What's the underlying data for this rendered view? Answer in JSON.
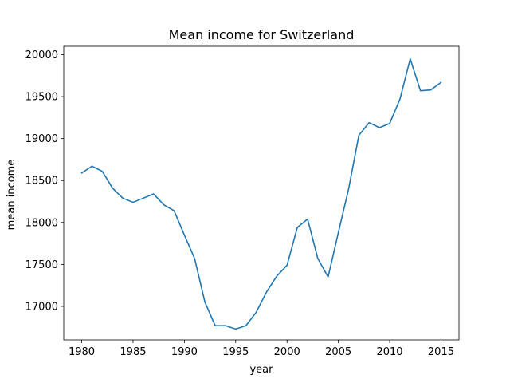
{
  "chart_data": {
    "type": "line",
    "title": "Mean income for Switzerland",
    "xlabel": "year",
    "ylabel": "mean income",
    "xlim": [
      1978.25,
      2016.75
    ],
    "ylim": [
      16600,
      20100
    ],
    "xticks": [
      1980,
      1985,
      1990,
      1995,
      2000,
      2005,
      2010,
      2015
    ],
    "yticks": [
      17000,
      17500,
      18000,
      18500,
      19000,
      19500,
      20000
    ],
    "grid": false,
    "series": [
      {
        "color": "#1f77b4",
        "x": [
          1980,
          1981,
          1982,
          1983,
          1984,
          1985,
          1986,
          1987,
          1988,
          1989,
          1990,
          1991,
          1992,
          1993,
          1994,
          1995,
          1996,
          1997,
          1998,
          1999,
          2000,
          2001,
          2002,
          2003,
          2004,
          2005,
          2006,
          2007,
          2008,
          2009,
          2010,
          2011,
          2012,
          2013,
          2014,
          2015
        ],
        "y": [
          18590,
          18670,
          18610,
          18410,
          18290,
          18240,
          18290,
          18340,
          18210,
          18140,
          17850,
          17570,
          17050,
          16770,
          16770,
          16730,
          16770,
          16930,
          17170,
          17360,
          17490,
          17940,
          18040,
          17570,
          17350,
          17880,
          18400,
          19040,
          19190,
          19130,
          19180,
          19470,
          19950,
          19570,
          19580,
          19670
        ]
      }
    ]
  }
}
